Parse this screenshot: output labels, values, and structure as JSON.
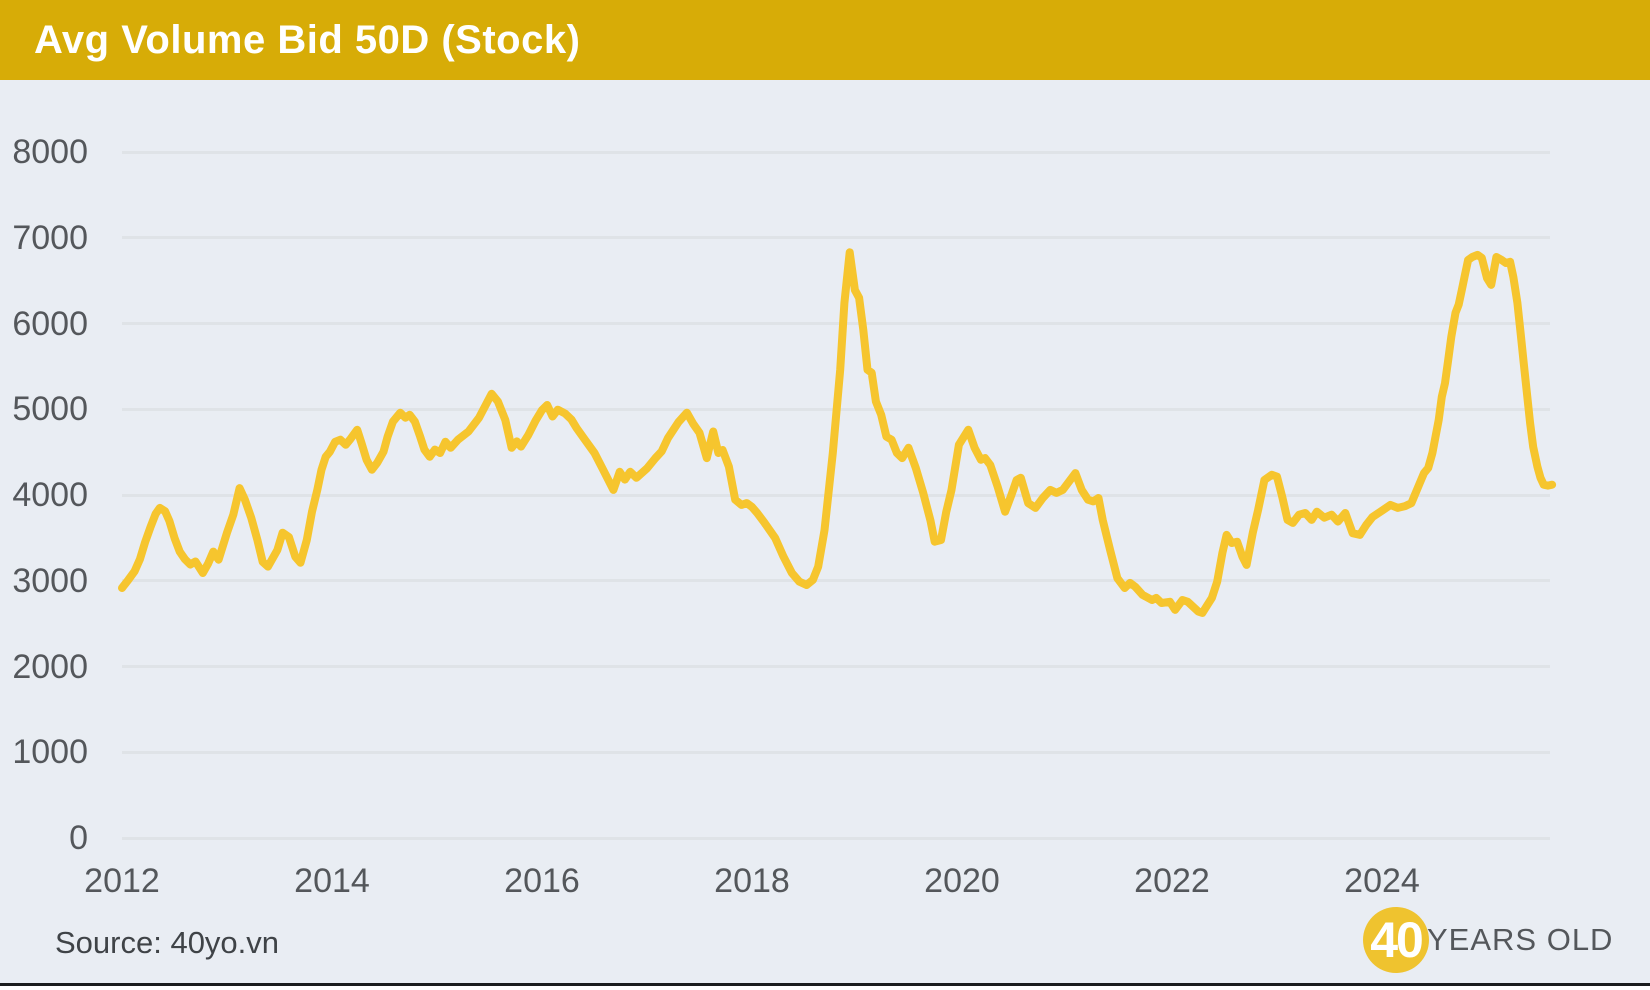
{
  "header": {
    "title": "Avg Volume Bid 50D (Stock)",
    "bg_color": "#D7AC07",
    "text_color": "#FFFFFF"
  },
  "footer": {
    "source": "Source: 40yo.vn",
    "logo": {
      "number": "40",
      "label": "YEARS OLD",
      "circle_color": "#EFC32F",
      "number_color": "#FFFFFF",
      "label_color": "#54575B"
    }
  },
  "chart_data": {
    "type": "line",
    "title": "Avg Volume Bid 50D (Stock)",
    "xlabel": "",
    "ylabel": "",
    "grid": "horizontal",
    "legend_position": "none",
    "x_axis": {
      "ticks": [
        2012,
        2014,
        2016,
        2018,
        2020,
        2022,
        2024
      ],
      "range": [
        2012,
        2025.62
      ]
    },
    "y_axis": {
      "ticks": [
        0,
        1000,
        2000,
        3000,
        4000,
        5000,
        6000,
        7000,
        8000
      ],
      "range": [
        0,
        8000
      ]
    },
    "colors": {
      "line": "#F6C52E",
      "grid": "#DFE3E7",
      "background": "#E9EDF3",
      "tick_text": "#54575B"
    },
    "series": [
      {
        "name": "Avg Volume Bid 50D",
        "points": [
          [
            2012.0,
            2915
          ],
          [
            2012.06,
            3010
          ],
          [
            2012.12,
            3110
          ],
          [
            2012.17,
            3250
          ],
          [
            2012.22,
            3450
          ],
          [
            2012.27,
            3620
          ],
          [
            2012.32,
            3780
          ],
          [
            2012.36,
            3850
          ],
          [
            2012.41,
            3810
          ],
          [
            2012.45,
            3700
          ],
          [
            2012.5,
            3500
          ],
          [
            2012.55,
            3340
          ],
          [
            2012.6,
            3250
          ],
          [
            2012.65,
            3190
          ],
          [
            2012.7,
            3225
          ],
          [
            2012.77,
            3090
          ],
          [
            2012.82,
            3200
          ],
          [
            2012.87,
            3340
          ],
          [
            2012.92,
            3245
          ],
          [
            2013.0,
            3560
          ],
          [
            2013.06,
            3770
          ],
          [
            2013.12,
            4080
          ],
          [
            2013.17,
            3945
          ],
          [
            2013.23,
            3735
          ],
          [
            2013.29,
            3475
          ],
          [
            2013.34,
            3220
          ],
          [
            2013.39,
            3165
          ],
          [
            2013.48,
            3360
          ],
          [
            2013.53,
            3560
          ],
          [
            2013.59,
            3510
          ],
          [
            2013.65,
            3280
          ],
          [
            2013.7,
            3210
          ],
          [
            2013.76,
            3475
          ],
          [
            2013.81,
            3805
          ],
          [
            2013.86,
            4060
          ],
          [
            2013.9,
            4295
          ],
          [
            2013.94,
            4445
          ],
          [
            2013.98,
            4505
          ],
          [
            2014.03,
            4620
          ],
          [
            2014.08,
            4645
          ],
          [
            2014.13,
            4585
          ],
          [
            2014.17,
            4645
          ],
          [
            2014.24,
            4760
          ],
          [
            2014.28,
            4610
          ],
          [
            2014.33,
            4410
          ],
          [
            2014.38,
            4295
          ],
          [
            2014.43,
            4375
          ],
          [
            2014.49,
            4505
          ],
          [
            2014.53,
            4680
          ],
          [
            2014.58,
            4855
          ],
          [
            2014.65,
            4960
          ],
          [
            2014.7,
            4900
          ],
          [
            2014.74,
            4935
          ],
          [
            2014.79,
            4855
          ],
          [
            2014.84,
            4680
          ],
          [
            2014.88,
            4530
          ],
          [
            2014.93,
            4445
          ],
          [
            2014.98,
            4530
          ],
          [
            2015.03,
            4490
          ],
          [
            2015.08,
            4620
          ],
          [
            2015.13,
            4550
          ],
          [
            2015.2,
            4645
          ],
          [
            2015.3,
            4740
          ],
          [
            2015.4,
            4900
          ],
          [
            2015.46,
            5040
          ],
          [
            2015.52,
            5180
          ],
          [
            2015.58,
            5090
          ],
          [
            2015.65,
            4875
          ],
          [
            2015.71,
            4550
          ],
          [
            2015.76,
            4625
          ],
          [
            2015.8,
            4565
          ],
          [
            2015.87,
            4700
          ],
          [
            2015.94,
            4870
          ],
          [
            2016.0,
            4990
          ],
          [
            2016.05,
            5050
          ],
          [
            2016.1,
            4915
          ],
          [
            2016.15,
            4995
          ],
          [
            2016.22,
            4950
          ],
          [
            2016.28,
            4880
          ],
          [
            2016.33,
            4780
          ],
          [
            2016.4,
            4660
          ],
          [
            2016.5,
            4490
          ],
          [
            2016.58,
            4300
          ],
          [
            2016.68,
            4060
          ],
          [
            2016.74,
            4270
          ],
          [
            2016.79,
            4180
          ],
          [
            2016.84,
            4270
          ],
          [
            2016.9,
            4200
          ],
          [
            2017.0,
            4310
          ],
          [
            2017.08,
            4430
          ],
          [
            2017.14,
            4510
          ],
          [
            2017.2,
            4665
          ],
          [
            2017.3,
            4850
          ],
          [
            2017.38,
            4960
          ],
          [
            2017.44,
            4830
          ],
          [
            2017.5,
            4725
          ],
          [
            2017.57,
            4430
          ],
          [
            2017.63,
            4740
          ],
          [
            2017.68,
            4490
          ],
          [
            2017.72,
            4525
          ],
          [
            2017.78,
            4330
          ],
          [
            2017.84,
            3945
          ],
          [
            2017.9,
            3885
          ],
          [
            2017.95,
            3905
          ],
          [
            2018.0,
            3860
          ],
          [
            2018.05,
            3790
          ],
          [
            2018.12,
            3675
          ],
          [
            2018.22,
            3500
          ],
          [
            2018.3,
            3280
          ],
          [
            2018.38,
            3090
          ],
          [
            2018.45,
            2990
          ],
          [
            2018.52,
            2950
          ],
          [
            2018.58,
            3010
          ],
          [
            2018.63,
            3165
          ],
          [
            2018.69,
            3590
          ],
          [
            2018.77,
            4490
          ],
          [
            2018.84,
            5460
          ],
          [
            2018.88,
            6240
          ],
          [
            2018.93,
            6830
          ],
          [
            2018.98,
            6390
          ],
          [
            2019.02,
            6300
          ],
          [
            2019.06,
            5925
          ],
          [
            2019.1,
            5460
          ],
          [
            2019.14,
            5425
          ],
          [
            2019.18,
            5090
          ],
          [
            2019.23,
            4935
          ],
          [
            2019.28,
            4680
          ],
          [
            2019.33,
            4645
          ],
          [
            2019.38,
            4490
          ],
          [
            2019.43,
            4430
          ],
          [
            2019.49,
            4550
          ],
          [
            2019.56,
            4315
          ],
          [
            2019.63,
            4025
          ],
          [
            2019.7,
            3700
          ],
          [
            2019.74,
            3455
          ],
          [
            2019.8,
            3475
          ],
          [
            2019.85,
            3800
          ],
          [
            2019.9,
            4060
          ],
          [
            2019.97,
            4585
          ],
          [
            2020.06,
            4760
          ],
          [
            2020.12,
            4550
          ],
          [
            2020.18,
            4410
          ],
          [
            2020.22,
            4430
          ],
          [
            2020.27,
            4350
          ],
          [
            2020.34,
            4095
          ],
          [
            2020.41,
            3805
          ],
          [
            2020.47,
            4000
          ],
          [
            2020.52,
            4175
          ],
          [
            2020.56,
            4200
          ],
          [
            2020.63,
            3905
          ],
          [
            2020.7,
            3850
          ],
          [
            2020.77,
            3965
          ],
          [
            2020.84,
            4060
          ],
          [
            2020.9,
            4025
          ],
          [
            2020.96,
            4060
          ],
          [
            2021.08,
            4255
          ],
          [
            2021.14,
            4060
          ],
          [
            2021.2,
            3945
          ],
          [
            2021.25,
            3925
          ],
          [
            2021.3,
            3965
          ],
          [
            2021.34,
            3710
          ],
          [
            2021.41,
            3360
          ],
          [
            2021.48,
            3030
          ],
          [
            2021.55,
            2915
          ],
          [
            2021.6,
            2975
          ],
          [
            2021.65,
            2930
          ],
          [
            2021.72,
            2835
          ],
          [
            2021.81,
            2775
          ],
          [
            2021.85,
            2800
          ],
          [
            2021.9,
            2740
          ],
          [
            2021.98,
            2755
          ],
          [
            2022.03,
            2660
          ],
          [
            2022.1,
            2775
          ],
          [
            2022.15,
            2755
          ],
          [
            2022.25,
            2640
          ],
          [
            2022.29,
            2625
          ],
          [
            2022.38,
            2800
          ],
          [
            2022.43,
            2990
          ],
          [
            2022.48,
            3325
          ],
          [
            2022.52,
            3535
          ],
          [
            2022.57,
            3440
          ],
          [
            2022.62,
            3455
          ],
          [
            2022.67,
            3280
          ],
          [
            2022.71,
            3185
          ],
          [
            2022.77,
            3560
          ],
          [
            2022.82,
            3825
          ],
          [
            2022.88,
            4175
          ],
          [
            2022.95,
            4235
          ],
          [
            2023.0,
            4215
          ],
          [
            2023.05,
            3980
          ],
          [
            2023.1,
            3710
          ],
          [
            2023.15,
            3675
          ],
          [
            2023.21,
            3770
          ],
          [
            2023.27,
            3790
          ],
          [
            2023.33,
            3710
          ],
          [
            2023.38,
            3805
          ],
          [
            2023.45,
            3735
          ],
          [
            2023.52,
            3770
          ],
          [
            2023.58,
            3690
          ],
          [
            2023.65,
            3790
          ],
          [
            2023.72,
            3555
          ],
          [
            2023.79,
            3535
          ],
          [
            2023.85,
            3650
          ],
          [
            2023.91,
            3745
          ],
          [
            2024.01,
            3825
          ],
          [
            2024.08,
            3885
          ],
          [
            2024.15,
            3850
          ],
          [
            2024.22,
            3870
          ],
          [
            2024.28,
            3905
          ],
          [
            2024.36,
            4140
          ],
          [
            2024.4,
            4255
          ],
          [
            2024.44,
            4315
          ],
          [
            2024.48,
            4490
          ],
          [
            2024.51,
            4680
          ],
          [
            2024.54,
            4875
          ],
          [
            2024.57,
            5145
          ],
          [
            2024.6,
            5305
          ],
          [
            2024.63,
            5575
          ],
          [
            2024.66,
            5845
          ],
          [
            2024.7,
            6125
          ],
          [
            2024.73,
            6220
          ],
          [
            2024.76,
            6390
          ],
          [
            2024.79,
            6565
          ],
          [
            2024.82,
            6740
          ],
          [
            2024.86,
            6775
          ],
          [
            2024.91,
            6800
          ],
          [
            2024.95,
            6765
          ],
          [
            2025.0,
            6530
          ],
          [
            2025.04,
            6450
          ],
          [
            2025.09,
            6775
          ],
          [
            2025.14,
            6740
          ],
          [
            2025.18,
            6705
          ],
          [
            2025.22,
            6720
          ],
          [
            2025.25,
            6545
          ],
          [
            2025.29,
            6240
          ],
          [
            2025.32,
            5890
          ],
          [
            2025.35,
            5540
          ],
          [
            2025.38,
            5190
          ],
          [
            2025.41,
            4840
          ],
          [
            2025.44,
            4560
          ],
          [
            2025.48,
            4330
          ],
          [
            2025.51,
            4200
          ],
          [
            2025.54,
            4120
          ],
          [
            2025.58,
            4110
          ],
          [
            2025.62,
            4120
          ]
        ]
      }
    ]
  }
}
